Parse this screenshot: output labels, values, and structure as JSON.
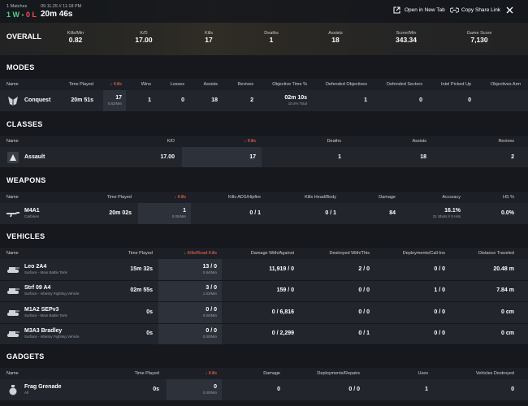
{
  "header": {
    "matches": "1 Matches",
    "date": "09.11.25 // 11:18 PM",
    "wins": "1 W",
    "separator": "-",
    "losses": "0 L",
    "duration": "20m 46s",
    "open_link": "Open in New Tab",
    "share_link": "Copy Share Link"
  },
  "overall": {
    "title": "OVERALL",
    "stats": [
      {
        "label": "Kills/Min",
        "value": "0.82"
      },
      {
        "label": "K/D",
        "value": "17.00"
      },
      {
        "label": "Kills",
        "value": "17"
      },
      {
        "label": "Deaths",
        "value": "1"
      },
      {
        "label": "Assists",
        "value": "18"
      },
      {
        "label": "Score/Min",
        "value": "343.34"
      },
      {
        "label": "Game Score",
        "value": "7,130"
      }
    ]
  },
  "sections": [
    {
      "title": "MODES",
      "name_header": "Name",
      "columns": [
        "Time Played",
        "Kills",
        "Wins",
        "Losses",
        "Assists",
        "Revives",
        "Objective Time %",
        "Defended Objectives",
        "Defended Sectors",
        "Intel Picked Up",
        "Objectives Arm"
      ],
      "rows": [
        {
          "name": "Conquest",
          "cells": [
            "20m 51s",
            {
              "main": "17",
              "sub": "0.82/Min"
            },
            "1",
            "0",
            "18",
            "2",
            {
              "main": "02m 10s",
              "sub": "10.4% Total"
            },
            "1",
            "0",
            "0",
            ""
          ]
        }
      ]
    },
    {
      "title": "CLASSES",
      "name_header": "Name",
      "columns": [
        "K/D",
        "Kills",
        "Deaths",
        "Assists",
        "Revives"
      ],
      "rows": [
        {
          "name": "Assault",
          "cells": [
            "17.00",
            "17",
            "1",
            "18",
            "2"
          ]
        }
      ]
    },
    {
      "title": "WEAPONS",
      "name_header": "Name",
      "columns": [
        "Time Played",
        "Kills",
        "Kills ADS/Hipfire",
        "Kills Head/Body",
        "Damage",
        "Accuracy",
        "HS %"
      ],
      "rows": [
        {
          "name": "M4A1",
          "sub": "Carbines",
          "cells": [
            "20m 02s",
            {
              "main": "1",
              "sub": "0.05/Min"
            },
            "0 / 1",
            "0 / 1",
            "84",
            {
              "main": "16.1%",
              "sub": "31 Shots // 5 Hits"
            },
            "0.0%"
          ]
        }
      ]
    },
    {
      "title": "VEHICLES",
      "name_header": "Name",
      "columns": [
        "Time Played",
        "Kills/Road Kills",
        "Damage With/Against",
        "Destroyed With/This",
        "Deployments/Call-Ins",
        "Distance Traveled"
      ],
      "rows": [
        {
          "name": "Leo 2A4",
          "sub": "Surface - Main Battle Tank",
          "cells": [
            "15m 32s",
            {
              "main": "13 / 0",
              "sub": "0.84/Min"
            },
            "11,919 / 0",
            "2 / 0",
            "0 / 0",
            "20.48 m"
          ]
        },
        {
          "name": "Strf 09 A4",
          "sub": "Surface - Infantry Fighting Vehicle",
          "cells": [
            "02m 55s",
            {
              "main": "3 / 0",
              "sub": "1.03/Min"
            },
            "159 / 0",
            "0 / 0",
            "1 / 0",
            "7.84 m"
          ]
        },
        {
          "name": "M1A2 SEPv3",
          "sub": "Surface - Main Battle Tank",
          "cells": [
            "0s",
            {
              "main": "0 / 0",
              "sub": "0.00/Min"
            },
            "0 / 6,816",
            "0 / 0",
            "0 / 0",
            "0 cm"
          ]
        },
        {
          "name": "M3A3 Bradley",
          "sub": "Surface - Infantry Fighting Vehicle",
          "cells": [
            "0s",
            {
              "main": "0 / 0",
              "sub": "0.00/Min"
            },
            "0 / 2,299",
            "0 / 1",
            "0 / 0",
            "0 cm"
          ]
        }
      ]
    },
    {
      "title": "GADGETS",
      "name_header": "Name",
      "columns": [
        "Time Played",
        "Kills",
        "Damage",
        "Deployments/Repairs",
        "Uses",
        "Vehicles Destroyed"
      ],
      "rows": [
        {
          "name": "Frag Grenade",
          "sub": "All",
          "cells": [
            "0s",
            {
              "main": "0",
              "sub": "0.00/Min"
            },
            "0",
            "0 / 0",
            "1",
            "0"
          ]
        }
      ]
    }
  ]
}
